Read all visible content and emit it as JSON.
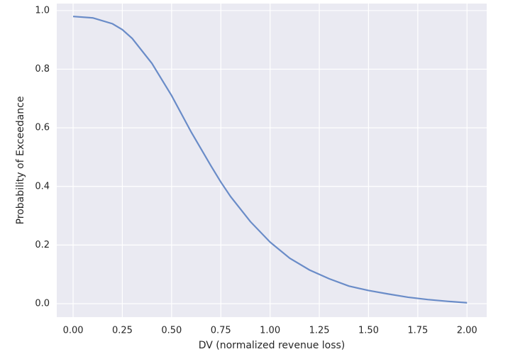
{
  "chart_data": {
    "type": "line",
    "xlabel": "DV (normalized revenue loss)",
    "ylabel": "Probability of Exceedance",
    "x": [
      0,
      0.1,
      0.2,
      0.25,
      0.3,
      0.4,
      0.5,
      0.6,
      0.7,
      0.75,
      0.8,
      0.9,
      1.0,
      1.1,
      1.2,
      1.3,
      1.4,
      1.5,
      1.6,
      1.7,
      1.8,
      1.9,
      2.0
    ],
    "series": [
      {
        "color": "#6a8cc8",
        "values": [
          0.98,
          0.975,
          0.955,
          0.935,
          0.905,
          0.82,
          0.71,
          0.585,
          0.47,
          0.415,
          0.365,
          0.28,
          0.21,
          0.155,
          0.115,
          0.085,
          0.06,
          0.045,
          0.033,
          0.022,
          0.014,
          0.008,
          0.003
        ]
      }
    ],
    "xlim": [
      -0.083,
      2.1
    ],
    "ylim": [
      -0.046,
      1.024
    ],
    "xticks": [
      {
        "value": 0,
        "label": "0.00"
      },
      0.25,
      {
        "value": 0.5,
        "label": "0.50"
      },
      0.75,
      {
        "value": 1,
        "label": "1.00"
      },
      1.25,
      {
        "value": 1.5,
        "label": "1.50"
      },
      1.75,
      {
        "value": 2,
        "label": "2.00"
      }
    ],
    "yticks": [
      {
        "value": 0,
        "label": "0.0"
      },
      0.2,
      0.4,
      0.6,
      0.8,
      {
        "value": 1,
        "label": "1.0"
      }
    ],
    "grid": true
  }
}
